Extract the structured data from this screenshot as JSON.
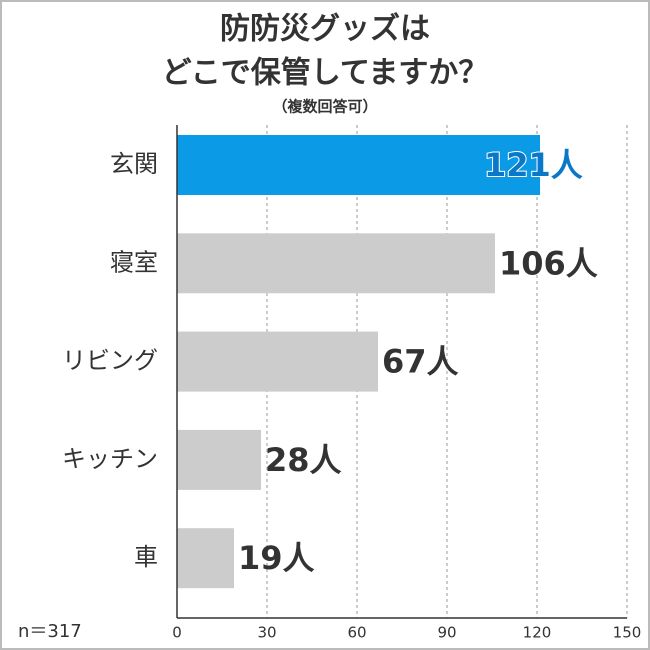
{
  "chart_data": {
    "type": "barh",
    "title": [
      "防防災グッズは",
      "どこで保管してますか？"
    ],
    "subtitle": "（複数回答可）",
    "categories": [
      "玄関",
      "寝室",
      "リビング",
      "キッチン",
      "車"
    ],
    "values": [
      121,
      106,
      67,
      28,
      19
    ],
    "value_labels": [
      "121人",
      "106人",
      "67人",
      "28人",
      "19人"
    ],
    "colors": [
      "#0a9ae6",
      "#cccccc",
      "#cccccc",
      "#cccccc",
      "#cccccc"
    ],
    "xlim": [
      0,
      150
    ],
    "xticks": [
      0,
      30,
      60,
      90,
      120,
      150
    ],
    "grid": true,
    "annotation": "n＝317"
  }
}
